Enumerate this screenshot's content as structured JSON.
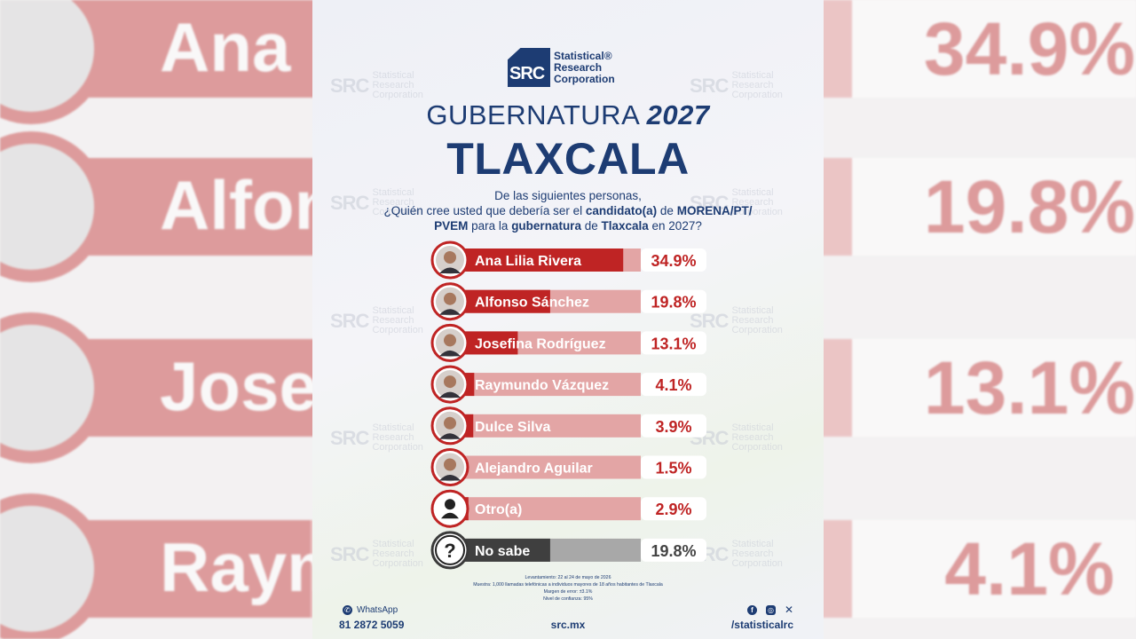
{
  "background_labels": [
    {
      "name": "Ana L",
      "pct": "34.9%"
    },
    {
      "name": "Alfon",
      "pct": "19.8%"
    },
    {
      "name": "Josef",
      "pct": "13.1%"
    },
    {
      "name": "Raym",
      "pct": "4.1%"
    }
  ],
  "logo": {
    "abbr": "SRC",
    "line1": "Statistical®",
    "line2": "Research",
    "line3": "Corporation"
  },
  "watermark": {
    "abbr": "SRC",
    "l1": "Statistical",
    "l2": "Research",
    "l3": "Corporation"
  },
  "header": {
    "title_plain": "GUBERNATURA ",
    "title_year": "2027",
    "state": "TLAXCALA"
  },
  "question": {
    "line1": "De las siguientes personas,",
    "p1": "¿Quién cree usted que debería ser el ",
    "b1": "candidato(a)",
    "p2": " de ",
    "b2": "MORENA/PT/ PVEM",
    "p3": " para la ",
    "b3": "gubernatura",
    "p4": " de ",
    "b4": "Tlaxcala",
    "p5": " en 2027?"
  },
  "chart_data": {
    "type": "bar",
    "orientation": "horizontal",
    "unit": "%",
    "xlim": [
      0,
      40
    ],
    "categories": [
      "Ana Lilia Rivera",
      "Alfonso Sánchez",
      "Josefina Rodríguez",
      "Raymundo Vázquez",
      "Dulce Silva",
      "Alejandro Aguilar",
      "Otro(a)",
      "No sabe"
    ],
    "values": [
      34.9,
      19.8,
      13.1,
      4.1,
      3.9,
      1.5,
      2.9,
      19.8
    ],
    "value_labels": [
      "34.9%",
      "19.8%",
      "13.1%",
      "4.1%",
      "3.9%",
      "1.5%",
      "2.9%",
      "19.8%"
    ],
    "icons": [
      "photo",
      "photo",
      "photo",
      "photo",
      "photo",
      "photo",
      "person-icon",
      "question-icon"
    ],
    "colors": {
      "fill": "#bf2424",
      "track": "#e3a5a5",
      "fill_nosabe": "#3f3f3f",
      "track_nosabe": "#a8a8a8",
      "circle_border": "#bf2424",
      "circle_border_nosabe": "#3a3a3a",
      "value_text": "#bf2424",
      "value_text_nosabe": "#444444"
    }
  },
  "footnotes": {
    "l1": "Levantamiento: 22 al 24 de mayo de 2026",
    "l2": "Muestra: 1,000 llamadas telefónicas a individuos mayores de 18 años habitantes de Tlaxcala",
    "l3": "Margen de error: ±3.1%",
    "l4": "Nivel de confianza: 95%"
  },
  "footer": {
    "whatsapp_label": "WhatsApp",
    "phone": "81 2872 5059",
    "site": "src.mx",
    "social_handle": "/statisticalrc",
    "icons": [
      "facebook-icon",
      "instagram-icon",
      "x-icon"
    ]
  }
}
